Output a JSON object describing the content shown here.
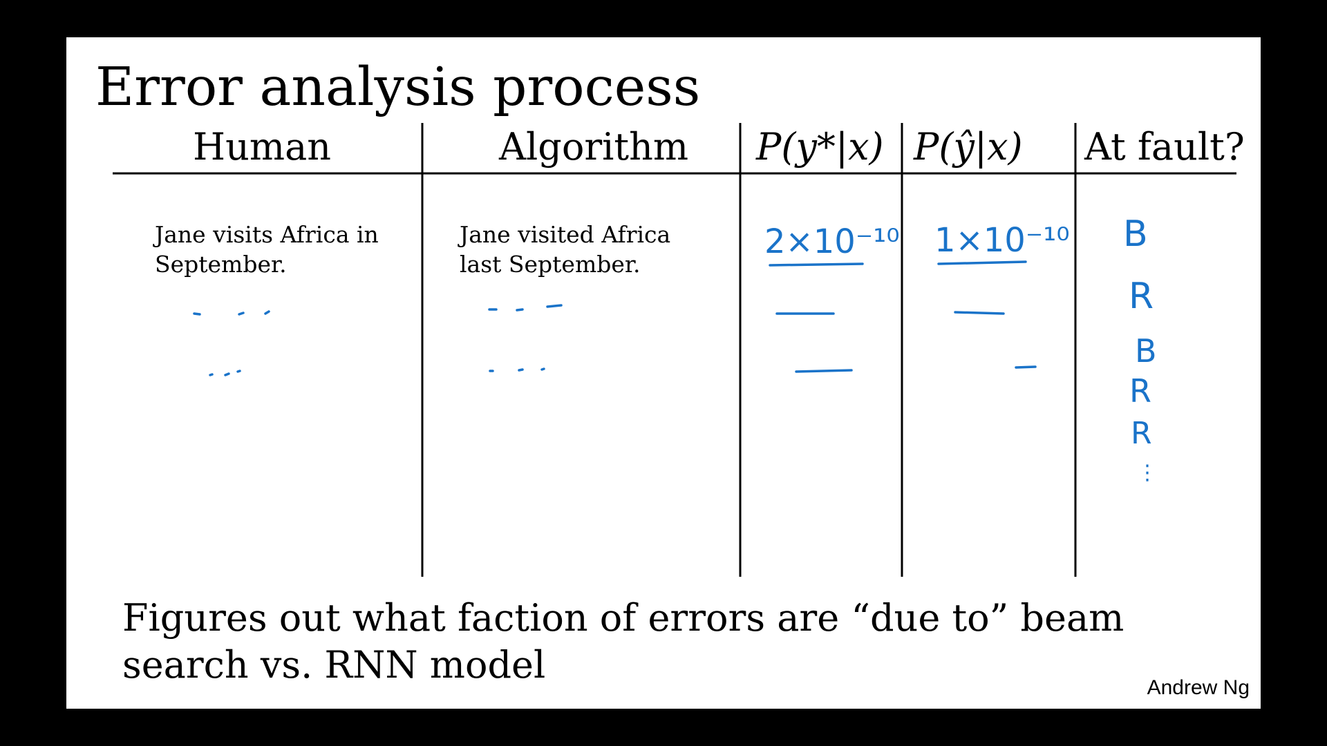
{
  "title": "Error analysis process",
  "table": {
    "headers": [
      "Human",
      "Algorithm",
      "P(y*|x)",
      "P(ŷ|x)",
      "At fault?"
    ],
    "rows": [
      {
        "human": [
          "Jane visits Africa in",
          "September."
        ],
        "algorithm": [
          "Jane visited Africa",
          "last September."
        ],
        "p_y_star": "2×10⁻¹⁰",
        "p_y_hat": "1×10⁻¹⁰",
        "at_fault": "B"
      }
    ],
    "at_fault_column": [
      "B",
      "R",
      "B",
      "R",
      "R",
      "⋮"
    ]
  },
  "footer": [
    "Figures out what faction of errors are “due to” beam",
    "search vs. RNN model"
  ],
  "author": "Andrew Ng",
  "colors": {
    "ink": "#1a73c9",
    "text": "#000000",
    "background": "#ffffff",
    "frame": "#000000"
  }
}
